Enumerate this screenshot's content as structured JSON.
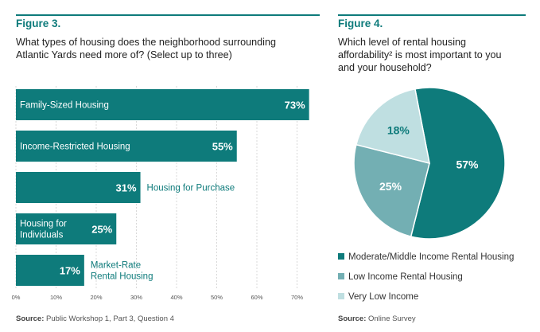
{
  "colors": {
    "teal": "#0e7b7b",
    "mid": "#73afb3",
    "light": "#bfdfe1",
    "gridline": "#cfcfcf"
  },
  "figure3": {
    "label": "Figure 3.",
    "question_line1": "What types of housing does the neighborhood surrounding",
    "question_line2": "Atlantic Yards need more of? (Select up to three)",
    "source_label": "Source:",
    "source_text": "Public Workshop 1, Part 3, Question 4"
  },
  "figure4": {
    "label": "Figure 4.",
    "question_line1": "Which level of rental housing",
    "question_line2": "affordability² is most important to you",
    "question_line3": "and your household?",
    "source_label": "Source:",
    "source_text": "Online Survey"
  },
  "chart_data": [
    {
      "type": "bar",
      "orientation": "horizontal",
      "title": "What types of housing does the neighborhood surrounding Atlantic Yards need more of? (Select up to three)",
      "categories": [
        [
          "Family-Sized Housing"
        ],
        [
          "Income-Restricted Housing"
        ],
        [
          "Housing for Purchase"
        ],
        [
          "Housing for",
          "Individuals"
        ],
        [
          "Market-Rate",
          "Rental Housing"
        ]
      ],
      "values": [
        73,
        55,
        31,
        25,
        17
      ],
      "value_labels": [
        "73%",
        "55%",
        "31%",
        "25%",
        "17%"
      ],
      "xlim": [
        0,
        75
      ],
      "ticks": [
        0,
        10,
        20,
        30,
        40,
        50,
        60,
        70
      ],
      "tick_labels": [
        "0%",
        "10%",
        "20%",
        "30%",
        "40%",
        "50%",
        "60%",
        "70%"
      ],
      "grid": true
    },
    {
      "type": "pie",
      "title": "Which level of rental housing affordability² is most important to you and your household?",
      "labels": [
        "Moderate/Middle Income Rental Housing",
        "Low Income Rental Housing",
        "Very Low Income"
      ],
      "values": [
        57,
        25,
        18
      ],
      "value_labels": [
        "57%",
        "25%",
        "18%"
      ],
      "legend": "bottom"
    }
  ]
}
